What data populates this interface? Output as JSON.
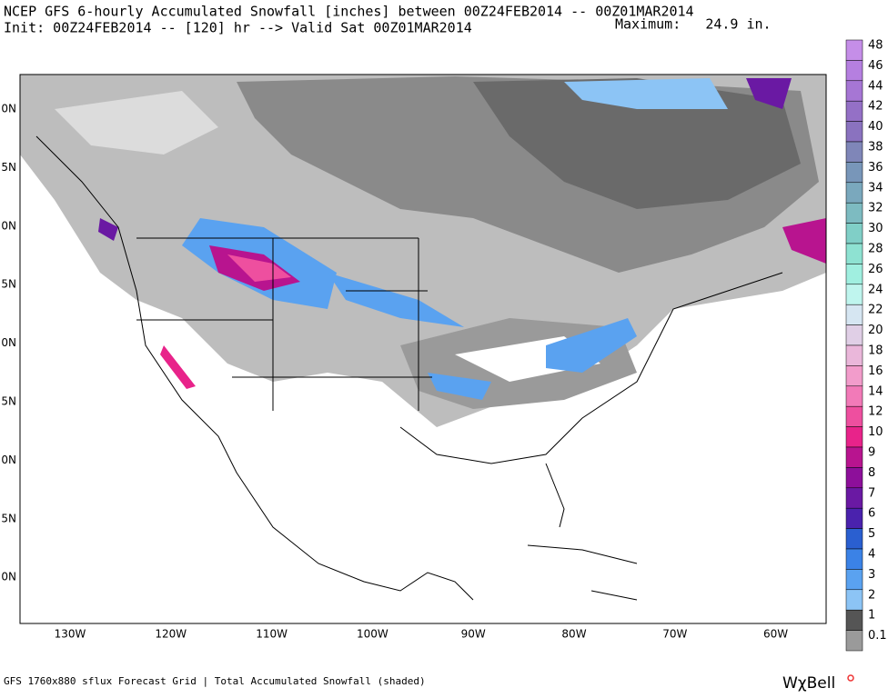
{
  "header": {
    "title": "NCEP GFS 6-hourly Accumulated Snowfall [inches] between 00Z24FEB2014 -- 00Z01MAR2014",
    "subtitle": "Init: 00Z24FEB2014 -- [120] hr --> Valid Sat 00Z01MAR2014",
    "maximum": "Maximum:   24.9 in."
  },
  "map": {
    "lat_labels": [
      "0N",
      "5N",
      "0N",
      "5N",
      "0N",
      "5N",
      "0N",
      "5N",
      "0N"
    ],
    "lon_labels": [
      "130W",
      "120W",
      "110W",
      "100W",
      "90W",
      "80W",
      "70W",
      "60W"
    ]
  },
  "legend": {
    "items": [
      {
        "label": "48",
        "color": "#c58ee8"
      },
      {
        "label": "46",
        "color": "#b57fe0"
      },
      {
        "label": "44",
        "color": "#a676d4"
      },
      {
        "label": "42",
        "color": "#9470c6"
      },
      {
        "label": "40",
        "color": "#8a72bf"
      },
      {
        "label": "38",
        "color": "#7f86b8"
      },
      {
        "label": "36",
        "color": "#7896b9"
      },
      {
        "label": "34",
        "color": "#7aa8bd"
      },
      {
        "label": "32",
        "color": "#7dbbc1"
      },
      {
        "label": "30",
        "color": "#80cfc7"
      },
      {
        "label": "28",
        "color": "#8ee2d2"
      },
      {
        "label": "26",
        "color": "#a0efe0"
      },
      {
        "label": "24",
        "color": "#bff5ee"
      },
      {
        "label": "22",
        "color": "#d6e6f2"
      },
      {
        "label": "20",
        "color": "#e0cfe6"
      },
      {
        "label": "18",
        "color": "#eab7da"
      },
      {
        "label": "16",
        "color": "#f29ccb"
      },
      {
        "label": "14",
        "color": "#f27ab8"
      },
      {
        "label": "12",
        "color": "#ee4f9f"
      },
      {
        "label": "10",
        "color": "#e8238a"
      },
      {
        "label": "9",
        "color": "#b8148f"
      },
      {
        "label": "8",
        "color": "#8d0f9a"
      },
      {
        "label": "7",
        "color": "#6a19a3"
      },
      {
        "label": "6",
        "color": "#4a22ad"
      },
      {
        "label": "5",
        "color": "#2a5fd0"
      },
      {
        "label": "4",
        "color": "#3b82e6"
      },
      {
        "label": "3",
        "color": "#5aa2f0"
      },
      {
        "label": "2",
        "color": "#8cc4f5"
      },
      {
        "label": "1",
        "color": "#555555"
      },
      {
        "label": "0.1",
        "color": "#9a9a9a"
      }
    ]
  },
  "footer": {
    "caption": "GFS 1760x880 sflux Forecast Grid | Total Accumulated Snowfall (shaded)",
    "logo": "WχBell"
  }
}
